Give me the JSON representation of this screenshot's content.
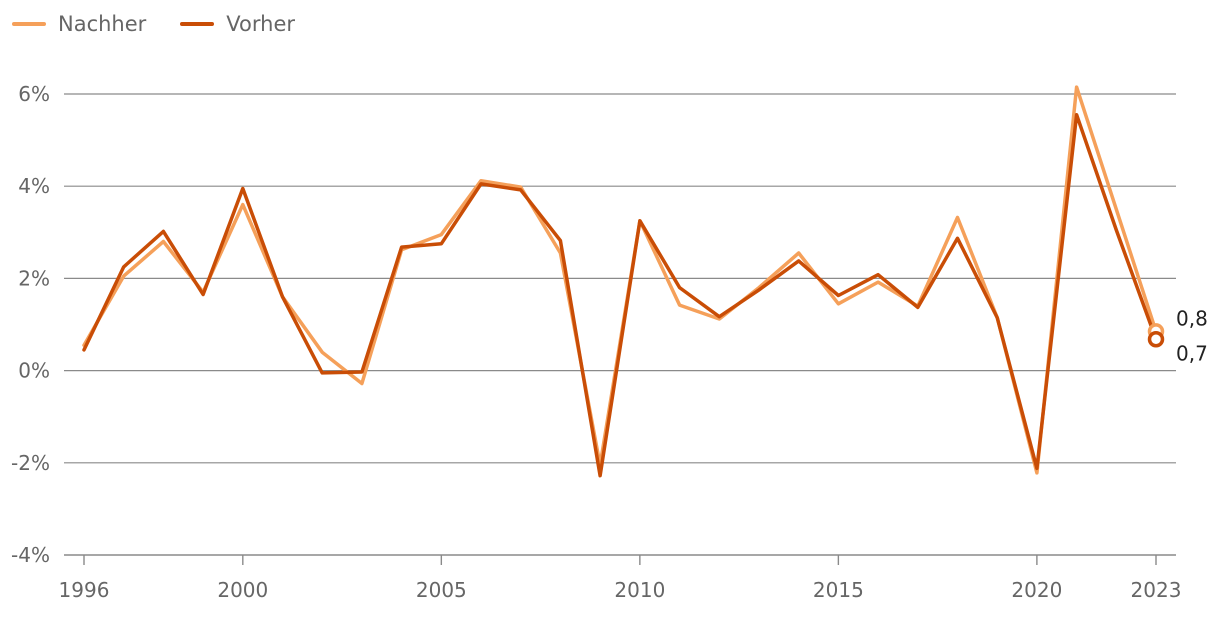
{
  "chart_data": {
    "type": "line",
    "x": [
      1996,
      1997,
      1998,
      1999,
      2000,
      2001,
      2002,
      2003,
      2004,
      2005,
      2006,
      2007,
      2008,
      2009,
      2010,
      2011,
      2012,
      2013,
      2014,
      2015,
      2016,
      2017,
      2018,
      2019,
      2020,
      2021,
      2022,
      2023
    ],
    "series": [
      {
        "name": "Nachher",
        "color": "#f5a05a",
        "values": [
          0.55,
          2.05,
          2.8,
          1.7,
          3.6,
          1.6,
          0.4,
          -0.28,
          2.62,
          2.95,
          4.12,
          3.98,
          2.55,
          -2.05,
          3.25,
          1.42,
          1.12,
          1.8,
          2.55,
          1.45,
          1.92,
          1.4,
          3.32,
          1.15,
          -2.22,
          6.15,
          3.5,
          0.85
        ]
      },
      {
        "name": "Vorher",
        "color": "#c94d06",
        "values": [
          0.45,
          2.25,
          3.02,
          1.65,
          3.95,
          1.6,
          -0.05,
          -0.03,
          2.68,
          2.75,
          4.05,
          3.92,
          2.82,
          -2.28,
          3.25,
          1.8,
          1.17,
          1.75,
          2.38,
          1.63,
          2.08,
          1.37,
          2.87,
          1.15,
          -2.12,
          5.55,
          3.05,
          0.68
        ]
      }
    ],
    "ylim": [
      -4,
      6
    ],
    "yticks": [
      -4,
      -2,
      0,
      2,
      4,
      6
    ],
    "ytick_labels": [
      "-4%",
      "-2%",
      "0%",
      "2%",
      "4%",
      "6%"
    ],
    "xticks": [
      1996,
      2000,
      2005,
      2010,
      2015,
      2020,
      2023
    ],
    "xtick_labels": [
      "1996",
      "2000",
      "2005",
      "2010",
      "2015",
      "2020",
      "2023"
    ],
    "end_labels": [
      "0,8",
      "0,7"
    ],
    "grid": true,
    "legend_position": "top-left",
    "grid_color": "#8a8a8a"
  }
}
